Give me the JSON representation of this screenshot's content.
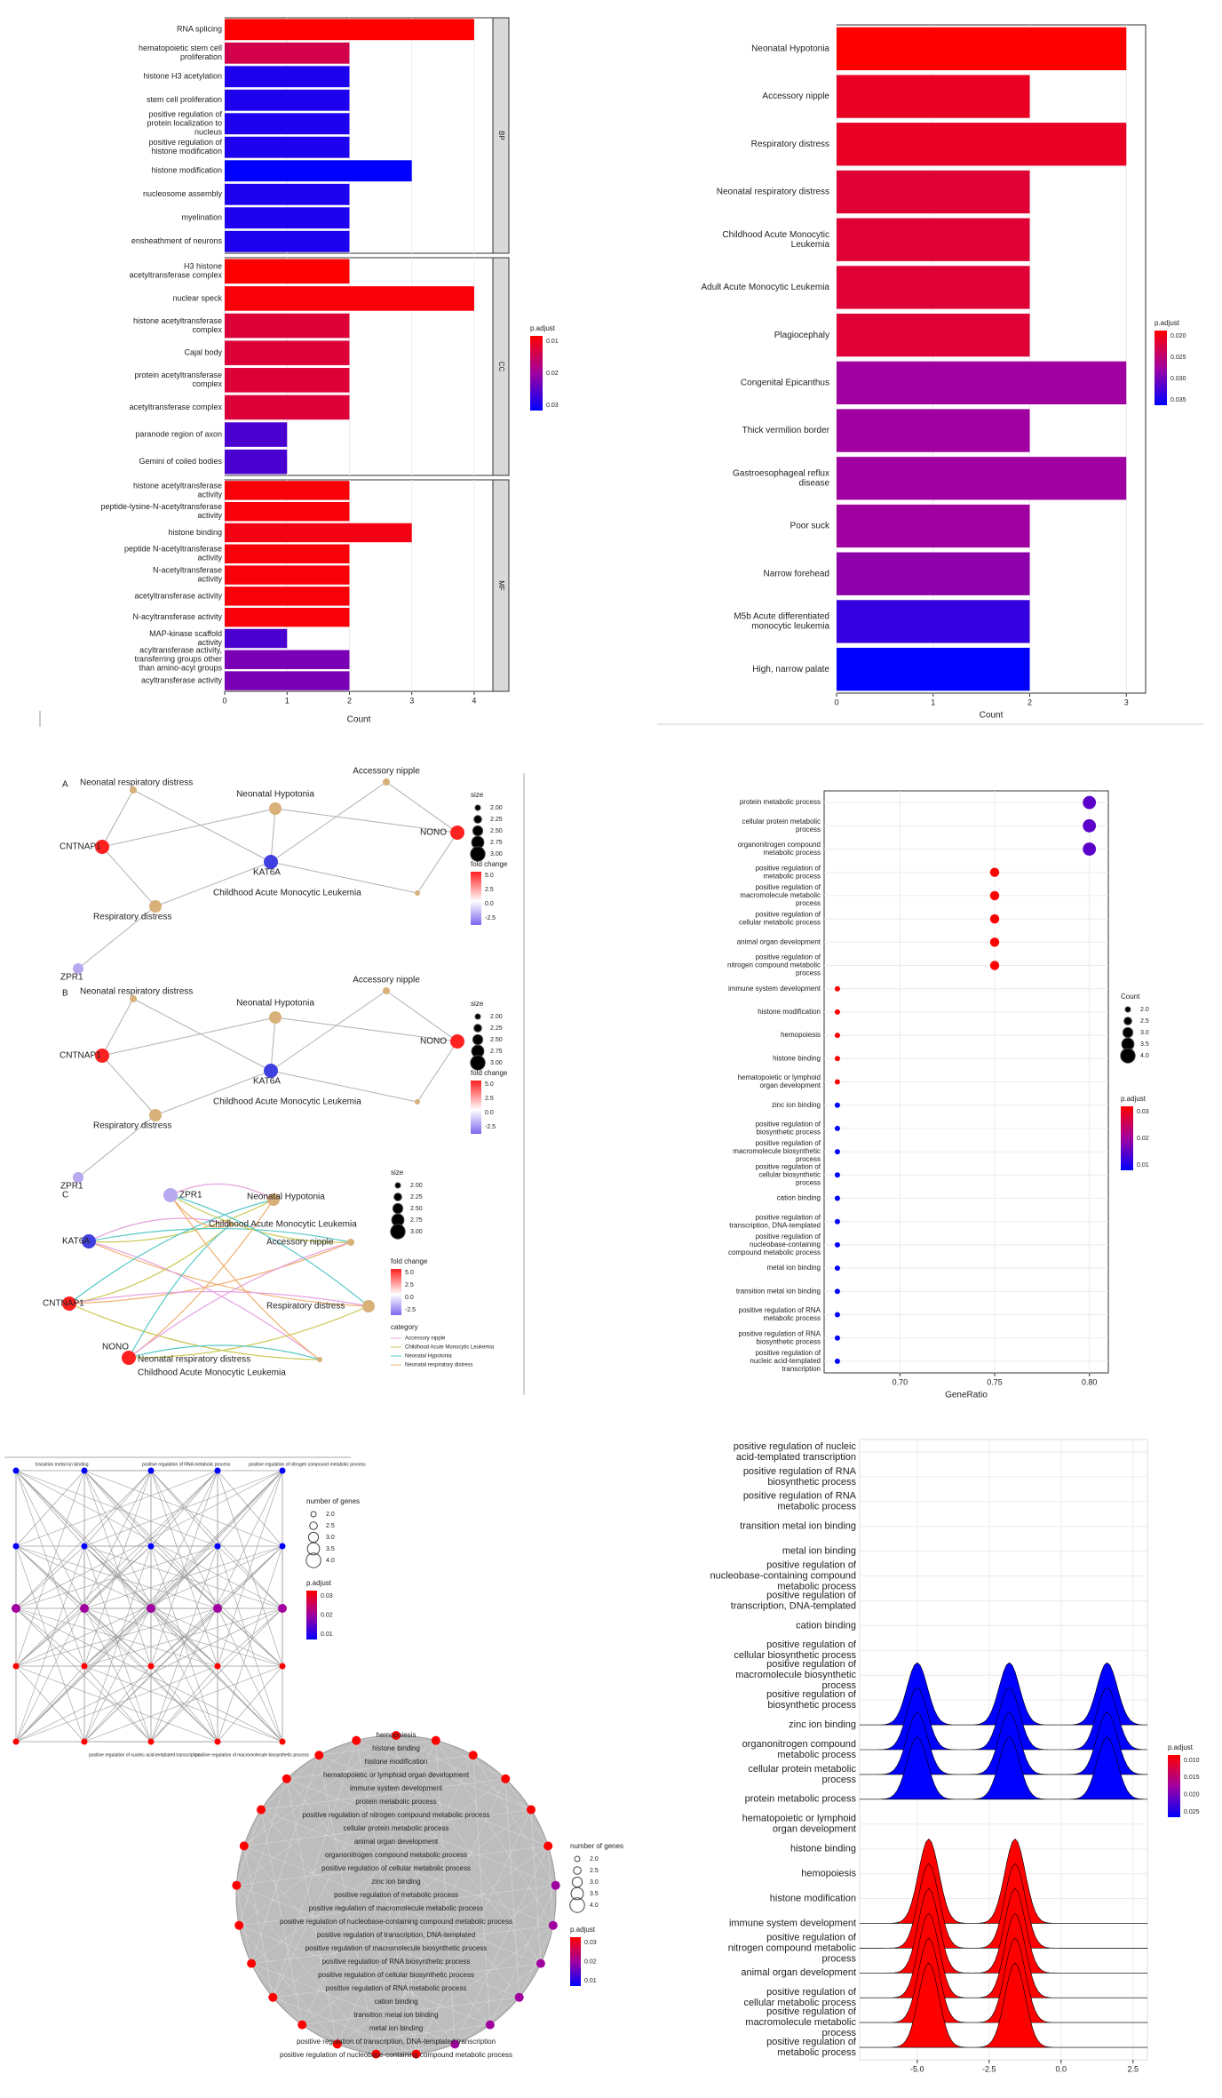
{
  "colors": {
    "high": "#ff0000",
    "mid": "#a000a0",
    "low": "#0000ff",
    "grid": "#ebebeb",
    "panel_border": "#333333",
    "strip_fill": "#d9d9d9",
    "edge": "#b0b0b0"
  },
  "chart_data": [
    {
      "type": "bar",
      "orientation": "horizontal",
      "facets": [
        {
          "strip": "BP",
          "categories": [
            "RNA splicing",
            "hematopoietic stem cell proliferation",
            "histone H3 acetylation",
            "stem cell proliferation",
            "positive regulation of protein localization to nucleus",
            "positive regulation of histone modification",
            "histone modification",
            "nucleosome assembly",
            "myelination",
            "ensheathment of neurons"
          ],
          "values": [
            4,
            2,
            2,
            2,
            2,
            2,
            3,
            2,
            2,
            2
          ],
          "p_adjust": [
            0.004,
            0.012,
            0.035,
            0.035,
            0.035,
            0.035,
            0.038,
            0.035,
            0.035,
            0.035
          ]
        },
        {
          "strip": "CC",
          "categories": [
            "H3 histone acetyltransferase complex",
            "nuclear speck",
            "histone acetyltransferase complex",
            "Cajal body",
            "protein acetyltransferase complex",
            "acetyltransferase complex",
            "paranode region of axon",
            "Gemini of coiled bodies"
          ],
          "values": [
            2,
            4,
            2,
            2,
            2,
            2,
            1,
            1
          ],
          "p_adjust": [
            0.004,
            0.005,
            0.01,
            0.01,
            0.01,
            0.01,
            0.03,
            0.03
          ]
        },
        {
          "strip": "MF",
          "categories": [
            "histone acetyltransferase activity",
            "peptide-lysine-N-acetyltransferase activity",
            "histone binding",
            "peptide N-acetyltransferase activity",
            "N-acetyltransferase activity",
            "acetyltransferase activity",
            "N-acyltransferase activity",
            "MAP-kinase scaffold activity",
            "acyltransferase activity, transferring groups other than amino-acyl groups",
            "acyltransferase activity"
          ],
          "values": [
            2,
            2,
            3,
            2,
            2,
            2,
            2,
            1,
            2,
            2
          ],
          "p_adjust": [
            0.005,
            0.005,
            0.006,
            0.005,
            0.005,
            0.005,
            0.005,
            0.03,
            0.025,
            0.025
          ]
        }
      ],
      "xlabel": "Count",
      "xlim": [
        0,
        4.3
      ],
      "xticks": [
        0,
        1,
        2,
        3,
        4
      ],
      "legend": {
        "title": "p.adjust",
        "ticks": [
          "0.01",
          "0.02",
          "0.03"
        ],
        "placement": "right"
      }
    },
    {
      "type": "bar",
      "orientation": "horizontal",
      "categories": [
        "Neonatal Hypotonia",
        "Accessory nipple",
        "Respiratory distress",
        "Neonatal respiratory distress",
        "Childhood Acute Monocytic Leukemia",
        "Adult Acute Monocytic Leukemia",
        "Plagiocephaly",
        "Congenital Epicanthus",
        "Thick vermilion border",
        "Gastroesophageal reflux disease",
        "Poor suck",
        "Narrow forehead",
        "M5b Acute differentiated monocytic leukemia",
        "High, narrow palate"
      ],
      "values": [
        3,
        2,
        3,
        2,
        2,
        2,
        2,
        3,
        2,
        3,
        2,
        2,
        2,
        2
      ],
      "p_adjust": [
        0.019,
        0.021,
        0.021,
        0.022,
        0.022,
        0.022,
        0.022,
        0.028,
        0.028,
        0.028,
        0.028,
        0.029,
        0.034,
        0.037
      ],
      "xlabel": "Count",
      "xlim": [
        0,
        3.2
      ],
      "xticks": [
        0,
        1,
        2,
        3
      ],
      "legend": {
        "title": "p.adjust",
        "ticks": [
          "0.020",
          "0.025",
          "0.030",
          "0.035"
        ],
        "placement": "right"
      }
    },
    {
      "type": "network",
      "panels": [
        "A",
        "B",
        "C"
      ],
      "gene_nodes": [
        "CNTNAP1",
        "KAT6A",
        "NONO",
        "ZPR1"
      ],
      "term_nodes": [
        "Neonatal respiratory distress",
        "Neonatal Hypotonia",
        "Accessory nipple",
        "Childhood Acute Monocytic Leukemia",
        "Respiratory distress"
      ],
      "size_legend": {
        "title": "size",
        "ticks": [
          "2.00",
          "2.25",
          "2.50",
          "2.75",
          "3.00"
        ]
      },
      "fold_change_legend": {
        "title": "fold change",
        "ticks": [
          "5.0",
          "2.5",
          "0.0",
          "-2.5"
        ]
      },
      "category_legend": {
        "title": "category",
        "items": [
          "Accessory nipple",
          "Childhood Acute Monocytic Leukemia",
          "Neonatal Hypotonia",
          "Neonatal respiratory distress"
        ]
      }
    },
    {
      "type": "scatter",
      "categories": [
        "protein metabolic process",
        "cellular protein metabolic process",
        "organonitrogen compound metabolic process",
        "positive regulation of metabolic process",
        "positive regulation of macromolecule metabolic process",
        "positive regulation of cellular metabolic process",
        "animal organ development",
        "positive regulation of nitrogen compound metabolic process",
        "immune system development",
        "histone modification",
        "hemopoiesis",
        "histone binding",
        "hematopoietic or lymphoid organ development",
        "zinc ion binding",
        "positive regulation of biosynthetic process",
        "positive regulation of macromolecule biosynthetic process",
        "positive regulation of cellular biosynthetic process",
        "cation binding",
        "positive regulation of transcription, DNA-templated",
        "positive regulation of nucleobase-containing compound metabolic process",
        "metal ion binding",
        "transition metal ion binding",
        "positive regulation of RNA metabolic process",
        "positive regulation of RNA biosynthetic process",
        "positive regulation of nucleic acid-templated transcription"
      ],
      "x": [
        0.8,
        0.8,
        0.8,
        0.75,
        0.75,
        0.75,
        0.75,
        0.75,
        0.667,
        0.667,
        0.667,
        0.667,
        0.667,
        0.667,
        0.667,
        0.667,
        0.667,
        0.667,
        0.667,
        0.667,
        0.667,
        0.667,
        0.667,
        0.667,
        0.667
      ],
      "count": [
        4,
        4,
        4,
        3,
        3,
        3,
        3,
        3,
        2,
        2,
        2,
        2,
        2,
        2,
        2,
        2,
        2,
        2,
        2,
        2,
        2,
        2,
        2,
        2,
        2
      ],
      "p_adjust": [
        0.028,
        0.028,
        0.028,
        0.01,
        0.01,
        0.01,
        0.01,
        0.01,
        0.01,
        0.01,
        0.01,
        0.01,
        0.01,
        0.035,
        0.035,
        0.035,
        0.035,
        0.035,
        0.035,
        0.035,
        0.035,
        0.035,
        0.035,
        0.035,
        0.035
      ],
      "xlabel": "GeneRatio",
      "xlim": [
        0.66,
        0.81
      ],
      "xticks": [
        0.7,
        0.75,
        0.8
      ],
      "size_legend": {
        "title": "Count",
        "ticks": [
          "2.0",
          "2.5",
          "3.0",
          "3.5",
          "4.0"
        ]
      },
      "legend": {
        "title": "p.adjust",
        "ticks": [
          "0.03",
          "0.02",
          "0.01"
        ],
        "placement": "right"
      }
    },
    {
      "type": "network",
      "variant": "emapplot-grid",
      "labels": [
        "transition metal ion binding",
        "positive regulation of nucleic acid-templated transcription",
        "positive regulation of RNA metabolic process",
        "positive regulation of macromolecule biosynthetic process",
        "positive regulation of nitrogen compound metabolic process"
      ],
      "size_legend": {
        "title": "number of genes",
        "ticks": [
          "2.0",
          "2.5",
          "3.0",
          "3.5",
          "4.0"
        ]
      },
      "legend": {
        "title": "p.adjust",
        "ticks": [
          "0.03",
          "0.02",
          "0.01"
        ]
      }
    },
    {
      "type": "network",
      "variant": "emapplot-circle",
      "labels": [
        "hemopoiesis",
        "histone binding",
        "histone modification",
        "hematopoietic or lymphoid organ development",
        "immune system development",
        "protein metabolic process",
        "positive regulation of nitrogen compound metabolic process",
        "cellular protein metabolic process",
        "animal organ development",
        "organonitrogen compound metabolic process",
        "positive regulation of cellular metabolic process",
        "zinc ion binding",
        "positive regulation of metabolic process",
        "positive regulation of macromolecule metabolic process",
        "positive regulation of nucleobase-containing compound metabolic process",
        "positive regulation of transcription, DNA-templated",
        "positive regulation of macromolecule biosynthetic process",
        "positive regulation of RNA biosynthetic process",
        "positive regulation of cellular biosynthetic process",
        "positive regulation of RNA metabolic process",
        "cation binding",
        "transition metal ion binding",
        "metal ion binding",
        "positive regulation of transcription, DNA-templated transcription",
        "positive regulation of nucleobase-containing compound metabolic process"
      ],
      "size_legend": {
        "title": "number of genes",
        "ticks": [
          "2.0",
          "2.5",
          "3.0",
          "3.5",
          "4.0"
        ]
      },
      "legend": {
        "title": "p.adjust",
        "ticks": [
          "0.03",
          "0.02",
          "0.01"
        ]
      }
    },
    {
      "type": "area",
      "variant": "ridgeline",
      "categories": [
        "positive regulation of nucleic acid-templated transcription",
        "positive regulation of RNA biosynthetic process",
        "positive regulation of RNA metabolic process",
        "transition metal ion binding",
        "metal ion binding",
        "positive regulation of nucleobase-containing compound metabolic process",
        "positive regulation of transcription, DNA-templated",
        "cation binding",
        "positive regulation of cellular biosynthetic process",
        "positive regulation of macromolecule biosynthetic process",
        "positive regulation of biosynthetic process",
        "zinc ion binding",
        "organonitrogen compound metabolic process",
        "cellular protein metabolic process",
        "protein metabolic process",
        "hematopoietic or lymphoid organ development",
        "histone binding",
        "hemopoiesis",
        "histone modification",
        "immune system development",
        "positive regulation of nitrogen compound metabolic process",
        "animal organ development",
        "positive regulation of cellular metabolic process",
        "positive regulation of macromolecule metabolic process",
        "positive regulation of metabolic process"
      ],
      "ridges": [
        {
          "group": "blue",
          "peaks": [
            -5.0,
            -1.8,
            1.6
          ],
          "p_adjust": 0.028
        },
        {
          "group": "red",
          "peaks": [
            -4.6,
            -1.6
          ],
          "p_adjust": 0.005
        }
      ],
      "xlim": [
        -7.0,
        3.0
      ],
      "xticks": [
        "-5.0",
        "-2.5",
        "0.0",
        "2.5"
      ],
      "legend": {
        "title": "p.adjust",
        "ticks": [
          "0.010",
          "0.015",
          "0.020",
          "0.025"
        ],
        "placement": "right"
      }
    }
  ]
}
